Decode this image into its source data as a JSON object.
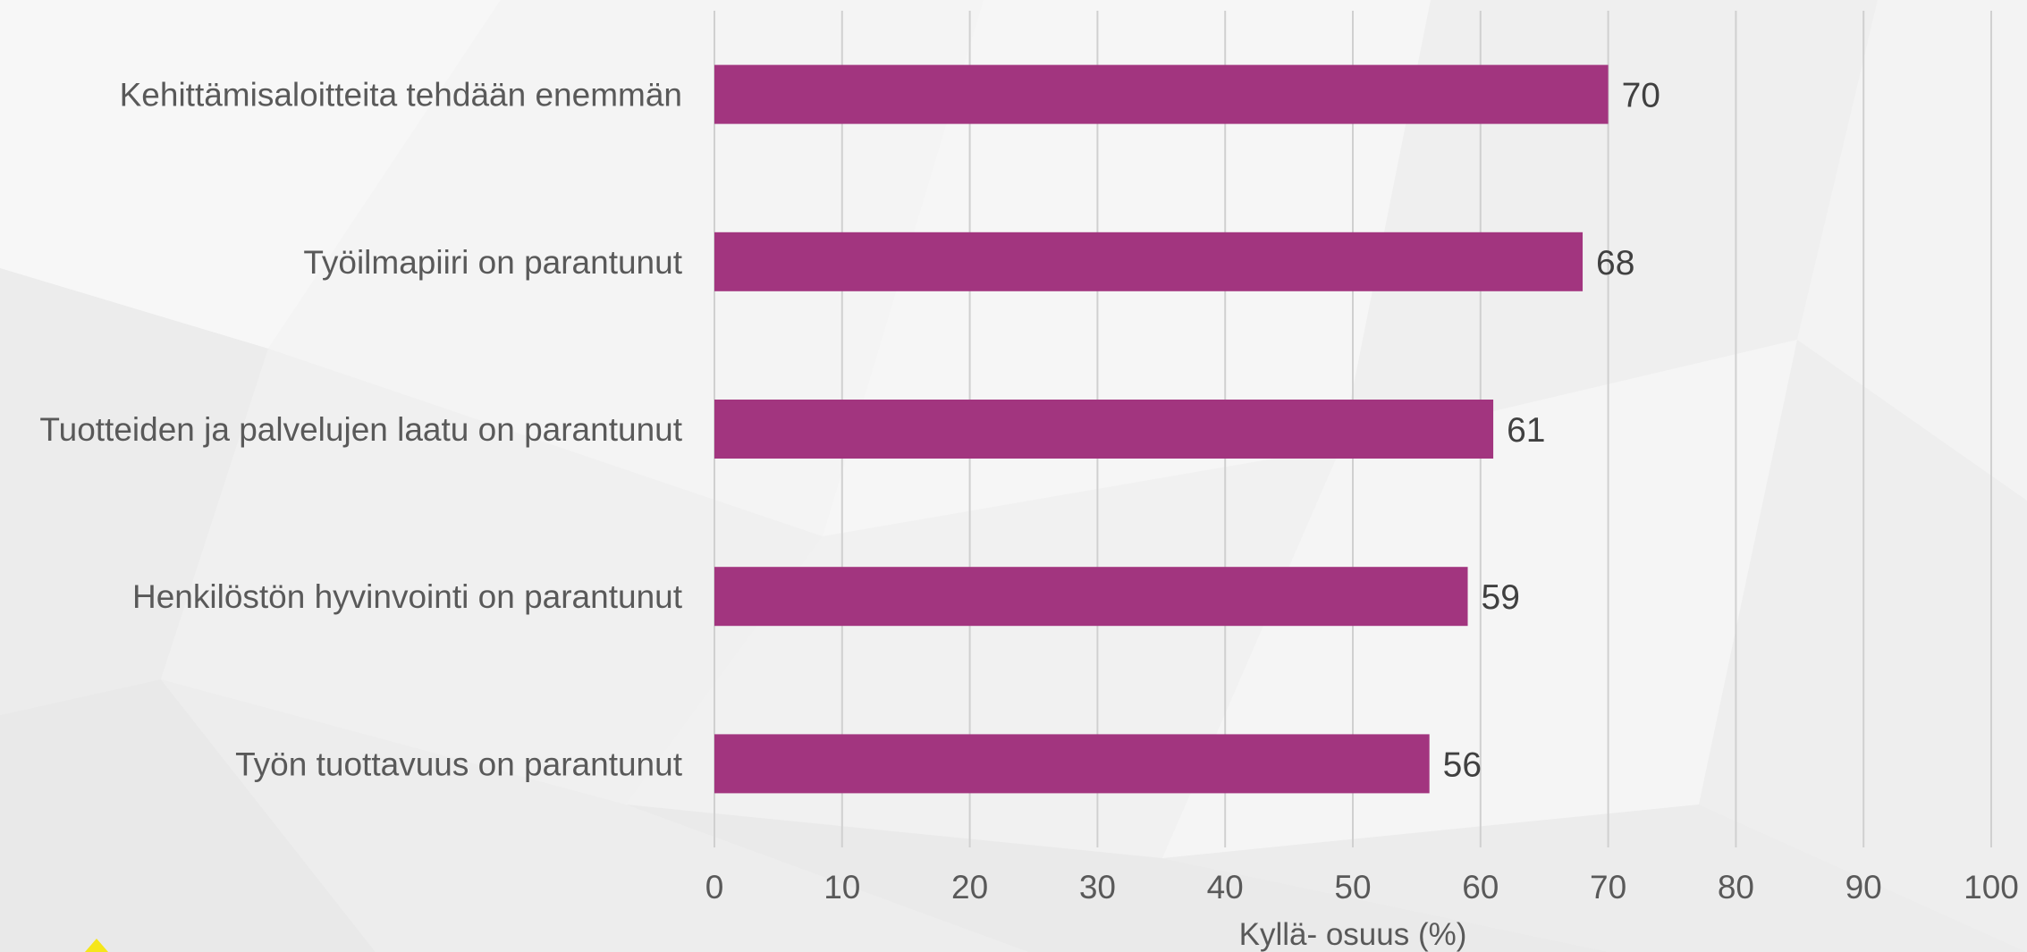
{
  "chart_data": {
    "type": "bar",
    "orientation": "horizontal",
    "categories": [
      "Kehittämisaloitteita tehdään enemmän",
      "Työilmapiiri on parantunut",
      "Tuotteiden ja palvelujen laatu on parantunut",
      "Henkilöstön hyvinvointi on parantunut",
      "Työn tuottavuus on parantunut"
    ],
    "values": [
      70,
      68,
      61,
      59,
      56
    ],
    "data_labels": [
      "70",
      "68",
      "61",
      "59",
      "56"
    ],
    "title": "",
    "xlabel": "Kyllä- osuus (%)",
    "ylabel": "",
    "xlim": [
      0,
      100
    ],
    "xticks": [
      0,
      10,
      20,
      30,
      40,
      50,
      60,
      70,
      80,
      90,
      100
    ],
    "grid": true,
    "legend": "none",
    "bar_color": "#a2357f"
  },
  "colors": {
    "bar": "#a2357f",
    "grid": "#d0d0d0",
    "label_text": "#595959",
    "value_text": "#404040",
    "accent_triangle": "#f5e61a"
  }
}
